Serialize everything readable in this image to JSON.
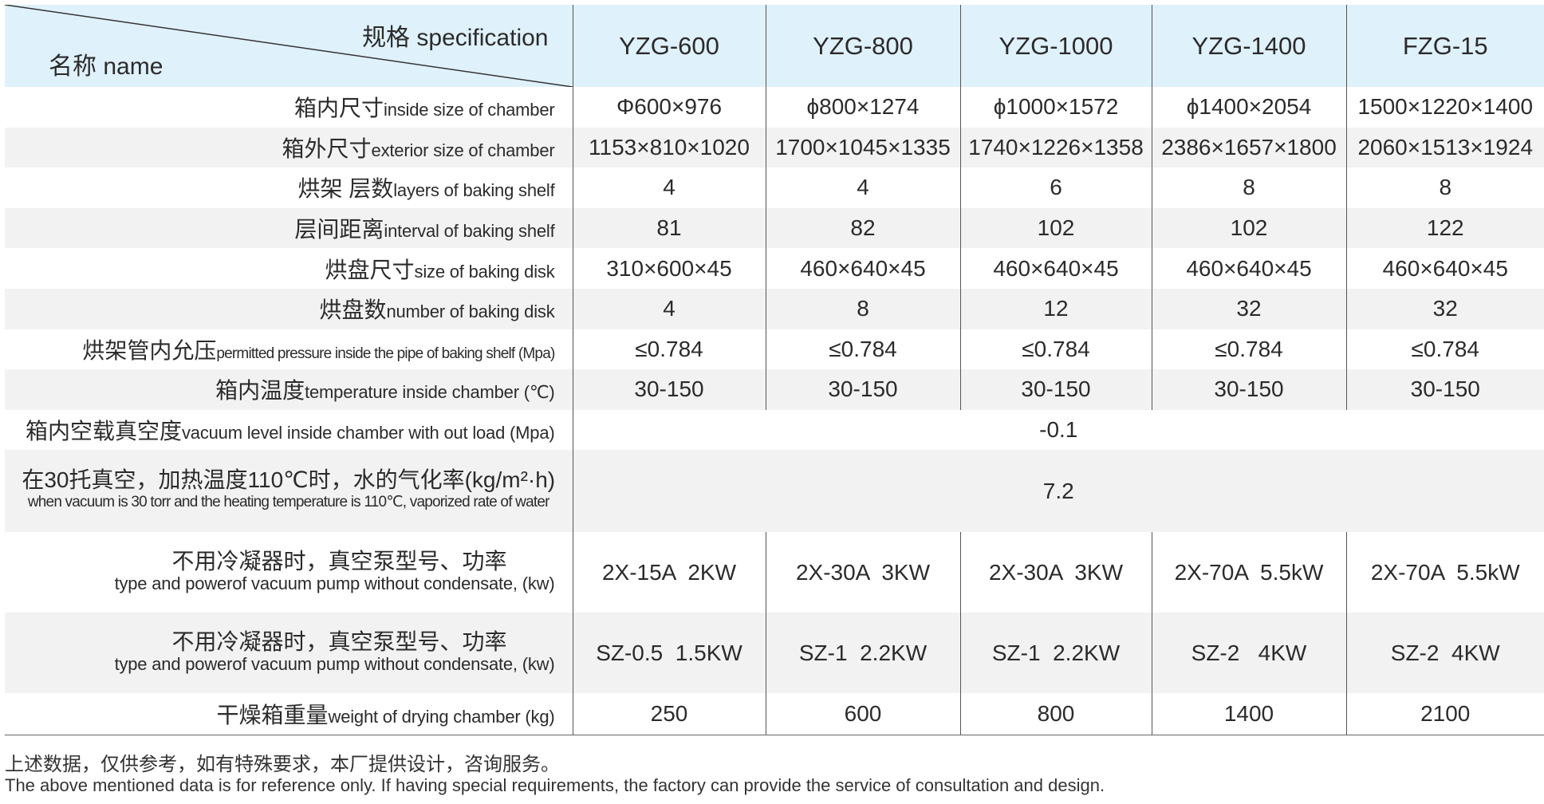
{
  "header": {
    "spec_label": "规格 specification",
    "name_label": "名称 name",
    "models": [
      "YZG-600",
      "YZG-800",
      "YZG-1000",
      "YZG-1400",
      "FZG-15"
    ]
  },
  "rows": [
    {
      "cn": "箱内尺寸",
      "en": "inside size of chamber",
      "values": [
        "Φ600×976",
        "ϕ800×1274",
        "ϕ1000×1572",
        "ϕ1400×2054",
        "1500×1220×1400"
      ]
    },
    {
      "cn": "箱外尺寸",
      "en": "exterior size of chamber",
      "values": [
        "1153×810×1020",
        "1700×1045×1335",
        "1740×1226×1358",
        "2386×1657×1800",
        "2060×1513×1924"
      ]
    },
    {
      "cn": "烘架 层数",
      "en": "layers of baking shelf",
      "values": [
        "4",
        "4",
        "6",
        "8",
        "8"
      ]
    },
    {
      "cn": "层间距离",
      "en": "interval of baking shelf",
      "values": [
        "81",
        "82",
        "102",
        "102",
        "122"
      ]
    },
    {
      "cn": "烘盘尺寸",
      "en": "size of baking disk",
      "values": [
        "310×600×45",
        "460×640×45",
        "460×640×45",
        "460×640×45",
        "460×640×45"
      ]
    },
    {
      "cn": "烘盘数",
      "en": "number of baking disk",
      "values": [
        "4",
        "8",
        "12",
        "32",
        "32"
      ]
    },
    {
      "cn": "烘架管内允压",
      "en": "permitted pressure inside the pipe of baking shelf (Mpa)",
      "values": [
        "≤0.784",
        "≤0.784",
        "≤0.784",
        "≤0.784",
        "≤0.784"
      ]
    },
    {
      "cn": "箱内温度",
      "en": "temperature inside chamber (℃)",
      "values": [
        "30-150",
        "30-150",
        "30-150",
        "30-150",
        "30-150"
      ]
    }
  ],
  "vacuum_row": {
    "cn": "箱内空载真空度",
    "en": "vacuum level inside chamber with out load (Mpa)",
    "value": "-0.1"
  },
  "vapor_row": {
    "cn": "在30托真空，加热温度110℃时，水的气化率(kg/m²·h)",
    "en": "when vacuum is 30 torr and the heating temperature is 110℃, vaporized rate of water",
    "value": "7.2"
  },
  "pump_rows": [
    {
      "cn": "不用冷凝器时，真空泵型号、功率",
      "en": "type and powerof vacuum pump without condensate, (kw)",
      "values": [
        "2X-15A  2KW",
        "2X-30A  3KW",
        "2X-30A  3KW",
        "2X-70A  5.5kW",
        "2X-70A  5.5kW"
      ]
    },
    {
      "cn": "不用冷凝器时，真空泵型号、功率",
      "en": "type and powerof vacuum pump without condensate, (kw)",
      "values": [
        "SZ-0.5  1.5KW",
        "SZ-1  2.2KW",
        "SZ-1  2.2KW",
        "SZ-2   4KW",
        "SZ-2  4KW"
      ]
    }
  ],
  "weight_row": {
    "cn": "干燥箱重量",
    "en": "weight of drying chamber (kg)",
    "values": [
      "250",
      "600",
      "800",
      "1400",
      "2100"
    ]
  },
  "footer": {
    "cn": "上述数据，仅供参考，如有特殊要求，本厂提供设计，咨询服务。",
    "en": "The above mentioned data is for reference only. If having special requirements, the factory can provide the service of consultation and design."
  },
  "colors": {
    "header_bg": "#dff1fb",
    "stripe_bg": "#f2f2f2"
  }
}
